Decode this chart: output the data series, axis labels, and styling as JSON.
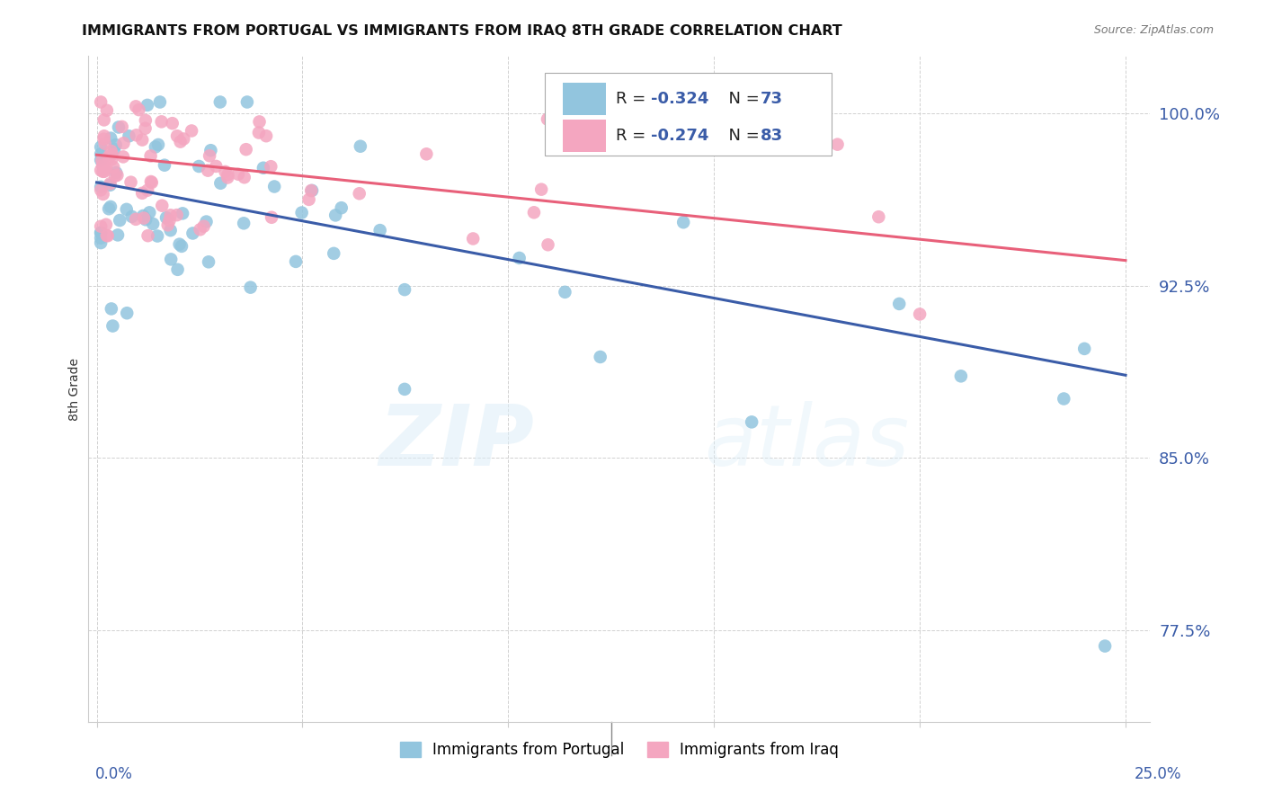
{
  "title": "IMMIGRANTS FROM PORTUGAL VS IMMIGRANTS FROM IRAQ 8TH GRADE CORRELATION CHART",
  "source": "Source: ZipAtlas.com",
  "ylabel": "8th Grade",
  "ytick_labels": [
    "100.0%",
    "92.5%",
    "85.0%",
    "77.5%"
  ],
  "ytick_values": [
    1.0,
    0.925,
    0.85,
    0.775
  ],
  "xtick_values": [
    0.0,
    0.05,
    0.1,
    0.15,
    0.2,
    0.25
  ],
  "xlim": [
    -0.002,
    0.256
  ],
  "ylim": [
    0.735,
    1.025
  ],
  "color_blue": "#92c5de",
  "color_pink": "#f4a6c0",
  "line_blue": "#3a5ca8",
  "line_pink": "#e8607a",
  "watermark_zip": "ZIP",
  "watermark_atlas": "atlas",
  "blue_line_x0": 0.0,
  "blue_line_y0": 0.97,
  "blue_line_x1": 0.25,
  "blue_line_y1": 0.886,
  "pink_line_x0": 0.0,
  "pink_line_y0": 0.982,
  "pink_line_x1": 0.25,
  "pink_line_y1": 0.936
}
